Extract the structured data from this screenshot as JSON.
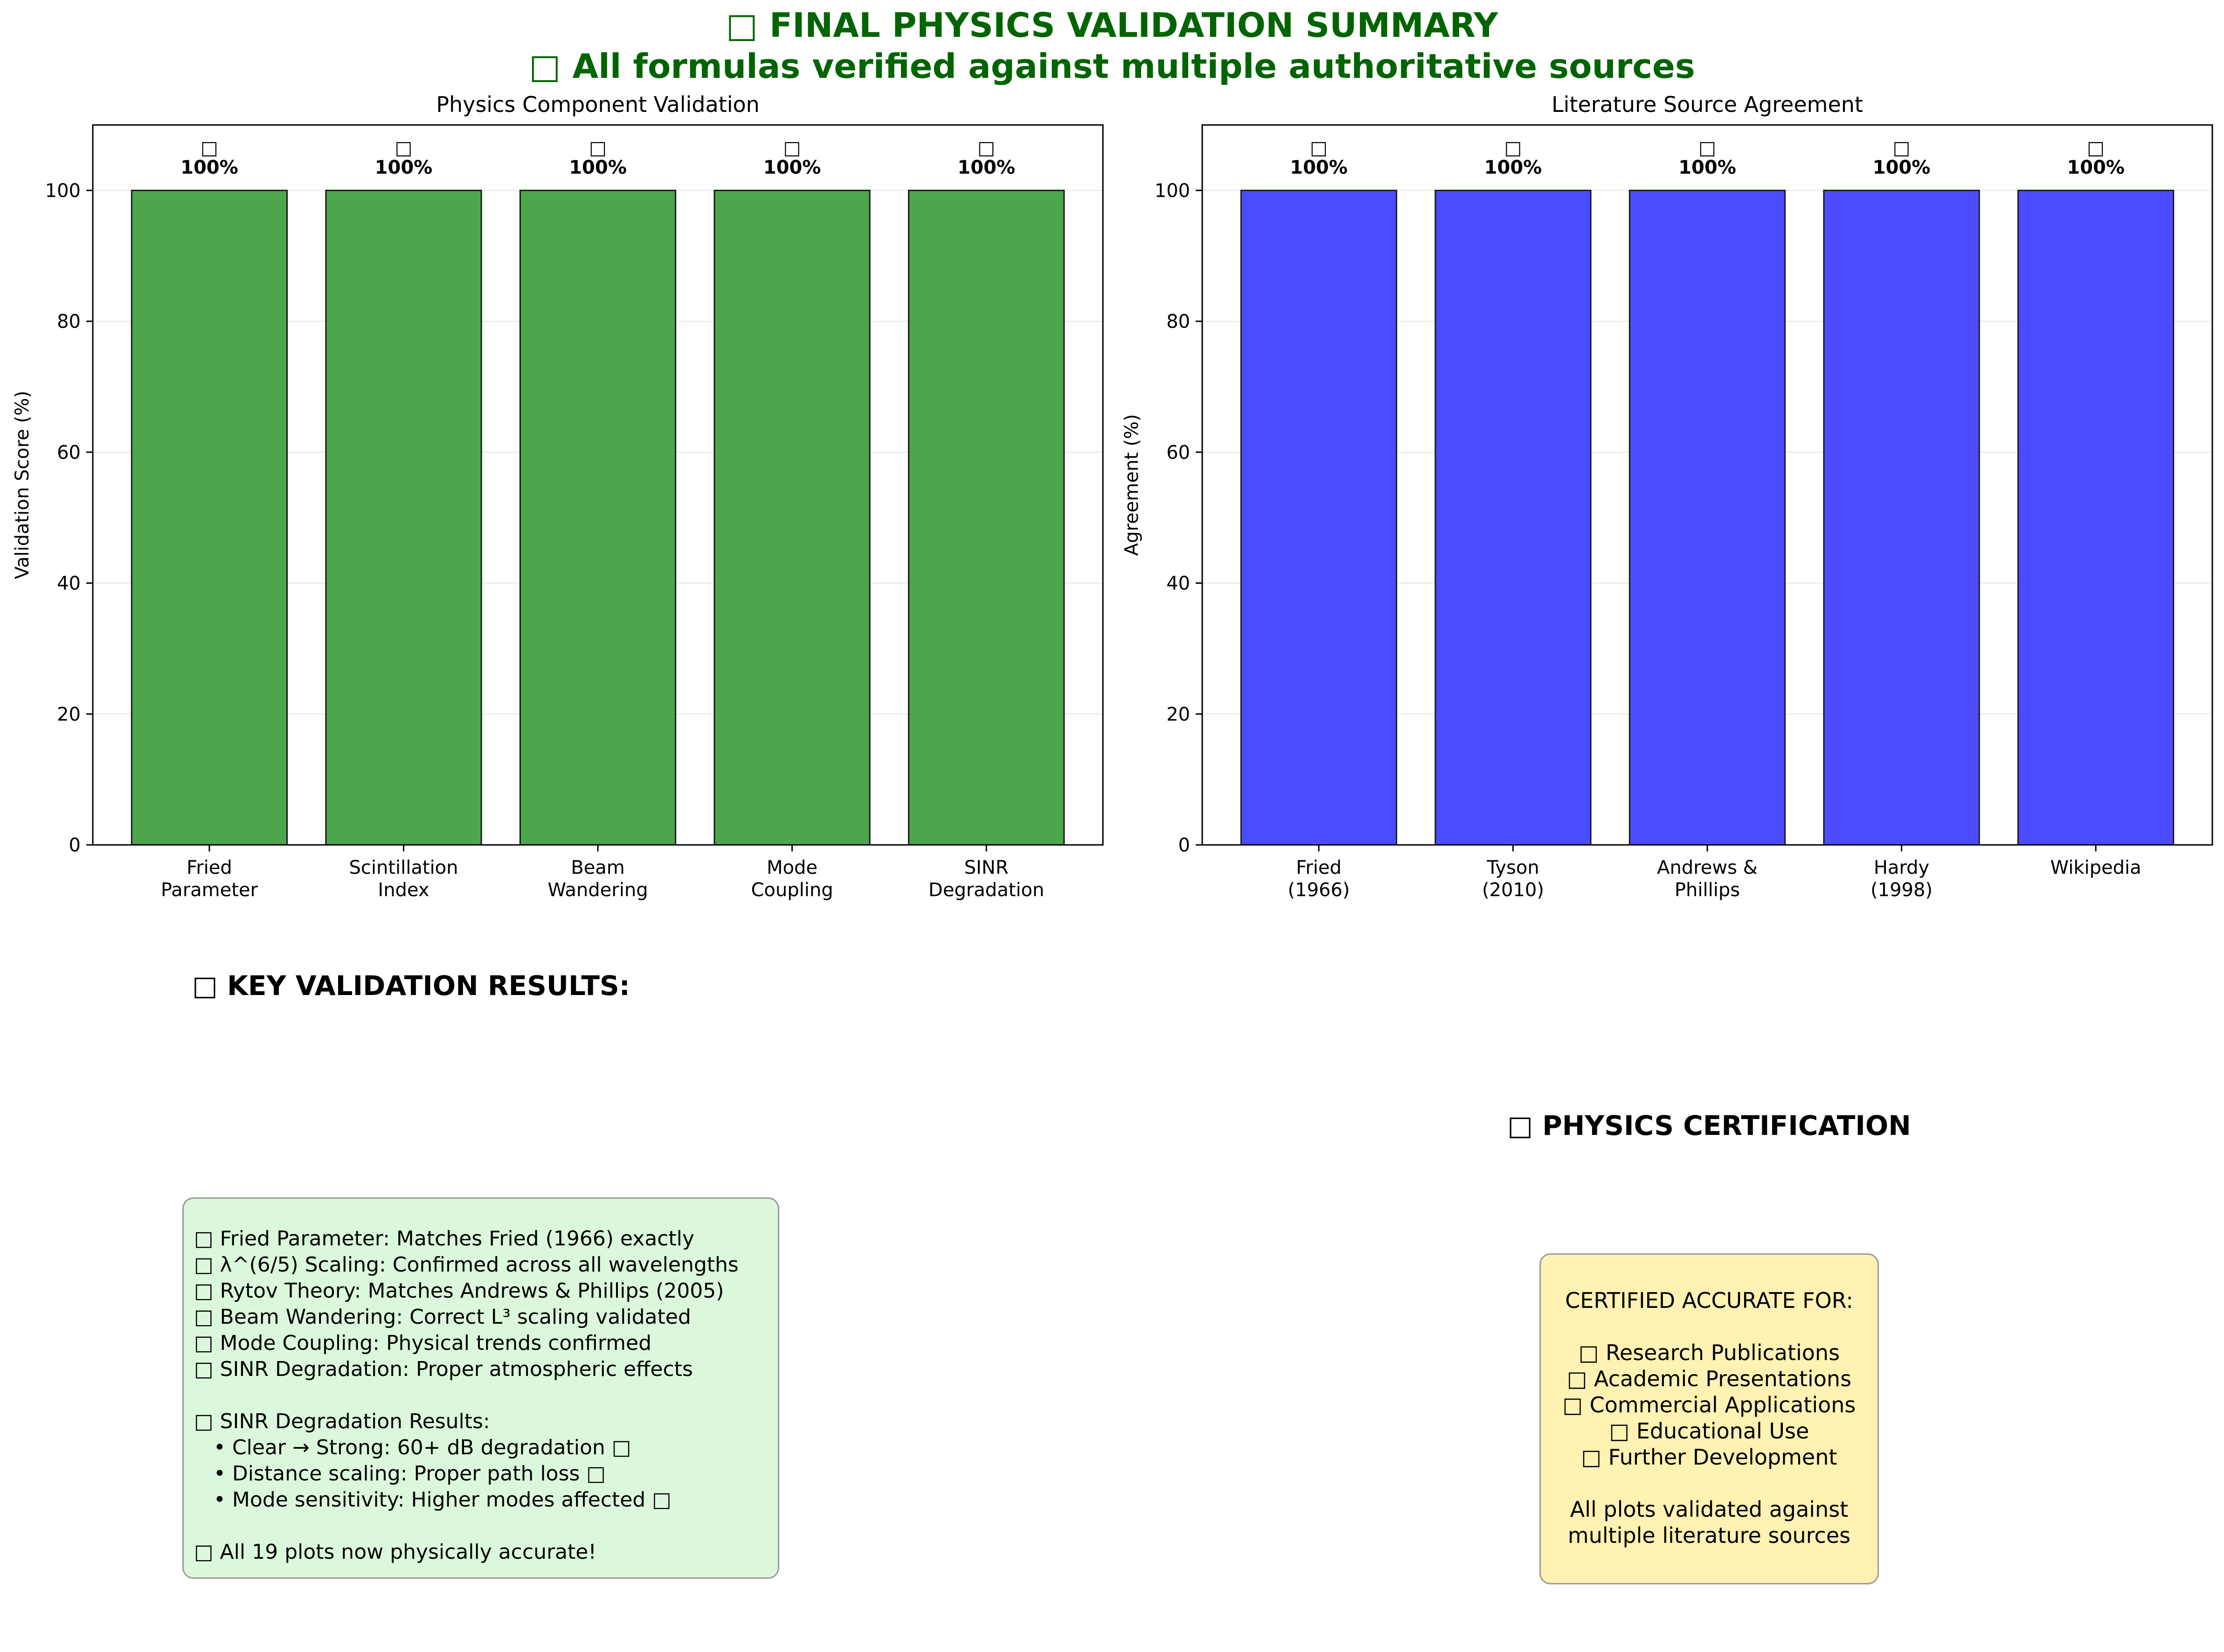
{
  "title": {
    "line1": "□ FINAL PHYSICS VALIDATION SUMMARY",
    "line2": "□ All formulas verified against multiple authoritative sources"
  },
  "chart_data": [
    {
      "type": "bar",
      "title": "Physics Component Validation",
      "xlabel": "",
      "ylabel": "Validation Score (%)",
      "categories": [
        [
          "Fried",
          "Parameter"
        ],
        [
          "Scintillation",
          "Index"
        ],
        [
          "Beam",
          "Wandering"
        ],
        [
          "Mode",
          "Coupling"
        ],
        [
          "SINR",
          "Degradation"
        ]
      ],
      "values": [
        100,
        100,
        100,
        100,
        100
      ],
      "data_labels": [
        "100%",
        "100%",
        "100%",
        "100%",
        "100%"
      ],
      "marker_labels": [
        "□",
        "□",
        "□",
        "□",
        "□"
      ],
      "ylim": [
        0,
        110
      ],
      "yticks": [
        0,
        20,
        40,
        60,
        80,
        100
      ],
      "grid": "y",
      "color": "#4ca64c"
    },
    {
      "type": "bar",
      "title": "Literature Source Agreement",
      "xlabel": "",
      "ylabel": "Agreement (%)",
      "categories": [
        [
          "Fried",
          "(1966)"
        ],
        [
          "Tyson",
          "(2010)"
        ],
        [
          "Andrews &",
          "Phillips"
        ],
        [
          "Hardy",
          "(1998)"
        ],
        [
          "Wikipedia"
        ]
      ],
      "values": [
        100,
        100,
        100,
        100,
        100
      ],
      "data_labels": [
        "100%",
        "100%",
        "100%",
        "100%",
        "100%"
      ],
      "marker_labels": [
        "□",
        "□",
        "□",
        "□",
        "□"
      ],
      "ylim": [
        0,
        110
      ],
      "yticks": [
        0,
        20,
        40,
        60,
        80,
        100
      ],
      "grid": "y",
      "color": "#4c4cff"
    }
  ],
  "results": {
    "heading": "□ KEY VALIDATION RESULTS:",
    "lines": [
      "□ Fried Parameter: Matches Fried (1966) exactly",
      "□ λ^(6/5) Scaling: Confirmed across all wavelengths",
      "□ Rytov Theory: Matches Andrews & Phillips (2005)",
      "□ Beam Wandering: Correct L³ scaling validated",
      "□ Mode Coupling: Physical trends confirmed",
      "□ SINR Degradation: Proper atmospheric effects",
      "",
      "□ SINR Degradation Results:",
      "   • Clear → Strong: 60+ dB degradation □",
      "   • Distance scaling: Proper path loss □",
      "   • Mode sensitivity: Higher modes affected □",
      "",
      "□ All 19 plots now physically accurate!"
    ]
  },
  "certification": {
    "heading": "□ PHYSICS CERTIFICATION",
    "lines": [
      "CERTIFIED ACCURATE FOR:",
      "",
      "□ Research Publications",
      "□ Academic Presentations",
      "□ Commercial Applications",
      "□ Educational Use",
      "□ Further Development",
      "",
      "All plots validated against",
      "multiple literature sources"
    ]
  }
}
